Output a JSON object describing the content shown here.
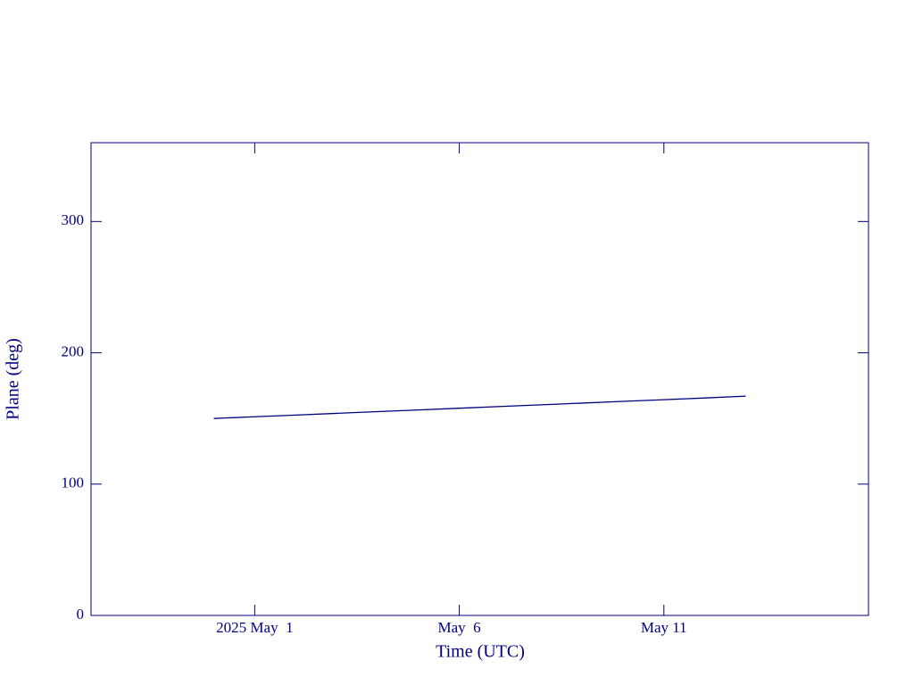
{
  "chart_data": {
    "type": "line",
    "x_label": "Time (UTC)",
    "y_label": "Plane (deg)",
    "x": [
      "2025-04-30",
      "2025-05-01",
      "2025-05-02",
      "2025-05-03",
      "2025-05-04",
      "2025-05-05",
      "2025-05-06",
      "2025-05-07",
      "2025-05-08",
      "2025-05-09",
      "2025-05-10",
      "2025-05-11",
      "2025-05-12",
      "2025-05-13"
    ],
    "series": [
      {
        "color": "#000080",
        "values": [
          150,
          151.3,
          152.6,
          153.9,
          155.2,
          156.5,
          157.8,
          159.1,
          160.4,
          161.7,
          163,
          164.3,
          165.6,
          167
        ]
      }
    ],
    "xlim": [
      "2025-04-27",
      "2025-05-16"
    ],
    "xticks": [
      {
        "value": "2025-05-01",
        "label": "2025 May  1"
      },
      {
        "value": "2025-05-06",
        "label": "May  6"
      },
      {
        "value": "2025-05-11",
        "label": "May 11"
      }
    ],
    "ylim": [
      0,
      360
    ],
    "yticks": [
      0,
      100,
      200,
      300
    ],
    "grid": false
  }
}
